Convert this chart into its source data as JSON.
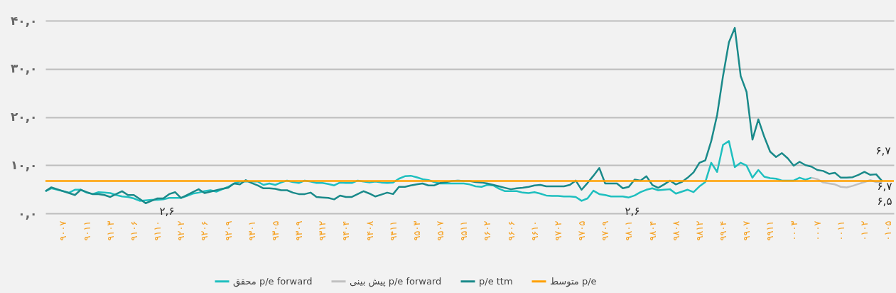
{
  "chart_data": {
    "type": "line",
    "ylim": [
      0,
      40
    ],
    "categories": [
      null,
      null,
      null,
      "۹۰۰۷",
      null,
      null,
      null,
      "۹۰۱۱",
      null,
      null,
      null,
      "۹۱۰۳",
      null,
      null,
      null,
      "۹۱۰۶",
      null,
      null,
      null,
      "۹۱۱۰",
      null,
      null,
      null,
      "۹۲۰۲",
      null,
      null,
      null,
      "۹۲۰۶",
      null,
      null,
      null,
      "۹۲۰۹",
      null,
      null,
      null,
      "۹۳۰۱",
      null,
      null,
      null,
      "۹۳۰۵",
      null,
      null,
      null,
      "۹۳۰۹",
      null,
      null,
      null,
      "۹۳۱۲",
      null,
      null,
      null,
      "۹۴۰۴",
      null,
      null,
      null,
      "۹۴۰۸",
      null,
      null,
      null,
      "۹۴۱۱",
      null,
      null,
      null,
      "۹۵۰۳",
      null,
      null,
      null,
      "۹۵۰۷",
      null,
      null,
      null,
      "۹۵۱۱",
      null,
      null,
      null,
      "۹۶۰۲",
      null,
      null,
      null,
      "۹۶۰۶",
      null,
      null,
      null,
      "۹۶۱۰",
      null,
      null,
      null,
      "۹۷۰۲",
      null,
      null,
      null,
      "۹۷۰۵",
      null,
      null,
      null,
      "۹۷۰۹",
      null,
      null,
      null,
      "۹۸۰۱",
      null,
      null,
      null,
      "۹۸۰۴",
      null,
      null,
      null,
      "۹۸۰۸",
      null,
      null,
      null,
      "۹۸۱۲",
      null,
      null,
      null,
      "۹۹۰۴",
      null,
      null,
      null,
      "۹۹۰۷",
      null,
      null,
      null,
      "۹۹۱۱",
      null,
      null,
      null,
      "۰۰۰۳",
      null,
      null,
      null,
      "۰۰۰۷",
      null,
      null,
      null,
      "۰۰۱۱",
      null,
      null,
      null,
      "۰۱۰۲",
      null,
      null,
      null,
      "۰۱۰۵",
      null
    ],
    "yticks": [
      {
        "value": 0,
        "label": "۰,۰"
      },
      {
        "value": 10,
        "label": "۱۰,۰"
      },
      {
        "value": 20,
        "label": "۲۰,۰"
      },
      {
        "value": 30,
        "label": "۳۰,۰"
      },
      {
        "value": 40,
        "label": "۴۰,۰"
      }
    ],
    "grid": "y",
    "legend": "bottom",
    "series": [
      {
        "name": "محقق p/e forward",
        "color": "#1fbfbf",
        "values": [
          4.6,
          5.2,
          4.9,
          4.6,
          4.3,
          4.9,
          4.9,
          4.3,
          4.0,
          4.4,
          4.3,
          4.2,
          3.8,
          3.5,
          3.4,
          3.1,
          2.6,
          2.7,
          2.8,
          2.8,
          2.9,
          3.2,
          3.2,
          3.2,
          3.6,
          4.1,
          4.3,
          4.6,
          4.8,
          4.5,
          5.0,
          5.5,
          6.2,
          6.6,
          6.6,
          6.6,
          6.6,
          5.9,
          6.2,
          5.9,
          6.4,
          6.8,
          6.5,
          6.3,
          6.8,
          6.6,
          6.3,
          6.3,
          6.1,
          5.8,
          6.4,
          6.3,
          6.3,
          6.8,
          6.6,
          6.4,
          6.6,
          6.4,
          6.3,
          6.4,
          7.2,
          7.7,
          7.8,
          7.5,
          7.1,
          6.9,
          6.5,
          6.2,
          6.2,
          6.2,
          6.2,
          6.2,
          6.0,
          5.6,
          5.5,
          5.9,
          5.8,
          5.1,
          4.6,
          4.6,
          4.6,
          4.3,
          4.2,
          4.4,
          4.1,
          3.7,
          3.6,
          3.6,
          3.5,
          3.5,
          3.4,
          2.6,
          3.1,
          4.7,
          4.0,
          3.8,
          3.5,
          3.5,
          3.5,
          3.3,
          3.7,
          4.4,
          4.9,
          5.2,
          4.8,
          4.9,
          5.0,
          4.1,
          4.5,
          4.9,
          4.4,
          5.6,
          6.5,
          10.5,
          8.6,
          14.2,
          15.0,
          9.6,
          10.5,
          9.9,
          7.4,
          9.0,
          7.6,
          7.3,
          7.2,
          6.8,
          null,
          6.8,
          7.4,
          7.0,
          7.4,
          null,
          null,
          null,
          null,
          null,
          null,
          null,
          null,
          null,
          null,
          null,
          null,
          null,
          null
        ]
      },
      {
        "name": "پیش بینی p/e forward",
        "color": "#c0c0c0",
        "values": [
          null,
          null,
          null,
          null,
          null,
          null,
          null,
          null,
          null,
          null,
          null,
          null,
          null,
          null,
          null,
          null,
          null,
          null,
          null,
          null,
          null,
          null,
          null,
          null,
          null,
          null,
          null,
          null,
          null,
          null,
          null,
          null,
          null,
          null,
          null,
          null,
          null,
          null,
          null,
          null,
          null,
          null,
          null,
          null,
          null,
          null,
          null,
          null,
          null,
          null,
          null,
          null,
          null,
          null,
          null,
          null,
          null,
          null,
          null,
          null,
          null,
          null,
          null,
          null,
          null,
          null,
          null,
          null,
          null,
          null,
          null,
          null,
          null,
          null,
          null,
          null,
          null,
          null,
          null,
          null,
          null,
          null,
          null,
          null,
          null,
          null,
          null,
          null,
          null,
          null,
          null,
          null,
          null,
          null,
          null,
          null,
          null,
          null,
          null,
          null,
          null,
          null,
          null,
          null,
          null,
          null,
          null,
          null,
          null,
          null,
          null,
          null,
          null,
          null,
          null,
          null,
          null,
          null,
          null,
          null,
          null,
          null,
          null,
          null,
          null,
          null,
          null,
          null,
          null,
          null,
          7.4,
          7.1,
          6.4,
          6.2,
          6.0,
          5.5,
          5.4,
          5.7,
          6.1,
          6.5,
          6.9,
          6.5,
          6.5,
          null,
          null
        ]
      },
      {
        "name": "p/e ttm",
        "color": "#1a8a8a",
        "values": [
          4.6,
          5.4,
          5.0,
          4.6,
          4.2,
          3.8,
          4.9,
          4.4,
          4.0,
          4.0,
          3.8,
          3.4,
          4.0,
          4.6,
          3.8,
          3.8,
          3.0,
          2.1,
          2.6,
          3.1,
          3.1,
          4.0,
          4.4,
          3.2,
          3.8,
          4.4,
          5.0,
          4.2,
          4.5,
          4.8,
          5.1,
          5.3,
          6.2,
          6.0,
          6.9,
          6.3,
          5.8,
          5.2,
          5.2,
          5.1,
          4.8,
          4.8,
          4.3,
          4.0,
          4.0,
          4.3,
          3.4,
          3.3,
          3.2,
          2.9,
          3.7,
          3.4,
          3.4,
          4.0,
          4.6,
          4.1,
          3.5,
          3.9,
          4.3,
          4.0,
          5.5,
          5.5,
          5.8,
          6.0,
          6.2,
          5.8,
          5.8,
          6.3,
          6.5,
          6.7,
          6.8,
          6.7,
          6.7,
          6.5,
          6.4,
          6.2,
          5.9,
          5.6,
          5.3,
          5.0,
          5.2,
          5.3,
          5.5,
          5.8,
          5.9,
          5.6,
          5.6,
          5.6,
          5.6,
          5.9,
          6.8,
          4.9,
          6.3,
          7.8,
          9.4,
          6.2,
          6.2,
          6.2,
          5.2,
          5.5,
          7.0,
          6.8,
          7.7,
          5.9,
          5.3,
          6.0,
          6.8,
          6.0,
          6.5,
          7.4,
          8.5,
          10.5,
          11.0,
          15.0,
          20.4,
          28.5,
          35.5,
          38.5,
          28.5,
          25.2,
          15.3,
          19.5,
          15.9,
          12.8,
          11.7,
          12.5,
          11.4,
          9.9,
          10.7,
          10.0,
          9.7,
          9.0,
          8.8,
          8.2,
          8.4,
          7.4,
          7.4,
          7.5,
          8.0,
          8.6,
          8.0,
          8.1,
          6.7,
          null,
          null
        ]
      },
      {
        "name": "متوسط p/e",
        "color": "#ffa000",
        "values": [
          6.7,
          6.7,
          6.7,
          6.7,
          6.7,
          6.7,
          6.7,
          6.7,
          6.7,
          6.7,
          6.7,
          6.7,
          6.7,
          6.7,
          6.7,
          6.7,
          6.7,
          6.7,
          6.7,
          6.7,
          6.7,
          6.7,
          6.7,
          6.7,
          6.7,
          6.7,
          6.7,
          6.7,
          6.7,
          6.7,
          6.7,
          6.7,
          6.7,
          6.7,
          6.7,
          6.7,
          6.7,
          6.7,
          6.7,
          6.7,
          6.7,
          6.7,
          6.7,
          6.7,
          6.7,
          6.7,
          6.7,
          6.7,
          6.7,
          6.7,
          6.7,
          6.7,
          6.7,
          6.7,
          6.7,
          6.7,
          6.7,
          6.7,
          6.7,
          6.7,
          6.7,
          6.7,
          6.7,
          6.7,
          6.7,
          6.7,
          6.7,
          6.7,
          6.7,
          6.7,
          6.7,
          6.7,
          6.7,
          6.7,
          6.7,
          6.7,
          6.7,
          6.7,
          6.7,
          6.7,
          6.7,
          6.7,
          6.7,
          6.7,
          6.7,
          6.7,
          6.7,
          6.7,
          6.7,
          6.7,
          6.7,
          6.7,
          6.7,
          6.7,
          6.7,
          6.7,
          6.7,
          6.7,
          6.7,
          6.7,
          6.7,
          6.7,
          6.7,
          6.7,
          6.7,
          6.7,
          6.7,
          6.7,
          6.7,
          6.7,
          6.7,
          6.7,
          6.7,
          6.7,
          6.7,
          6.7,
          6.7,
          6.7,
          6.7,
          6.7,
          6.7,
          6.7,
          6.7,
          6.7,
          6.7,
          6.7,
          6.7,
          6.7,
          6.7,
          6.7,
          6.7,
          6.7,
          6.7,
          6.7,
          6.7,
          6.7,
          6.7,
          6.7,
          6.7,
          6.7,
          6.7,
          6.7,
          6.7,
          6.7,
          6.7
        ]
      }
    ],
    "annotations": [
      "۲,۶",
      "۲,۶",
      "۶,۷",
      "۶,۷",
      "۶,۵"
    ]
  }
}
